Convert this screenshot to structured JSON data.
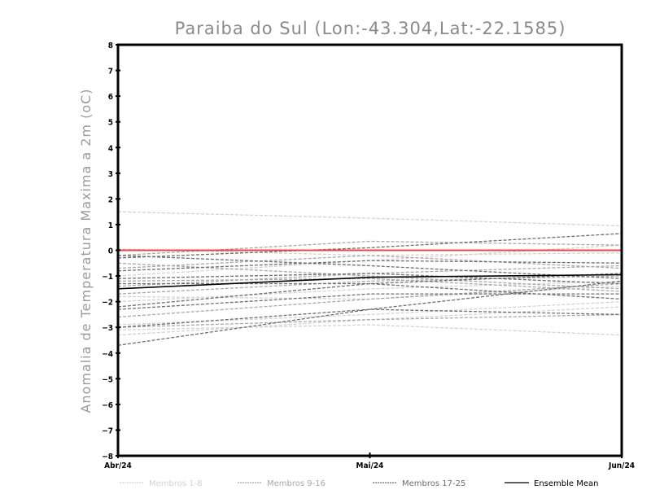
{
  "chart_data": {
    "type": "line",
    "title": "Paraiba do Sul (Lon:-43.304,Lat:-22.1585)",
    "xlabel": "",
    "ylabel": "Anomalia de Temperatura Maxima a 2m (oC)",
    "categories": [
      "Abr/24",
      "Mai/24",
      "Jun/24"
    ],
    "ylim": [
      -8,
      8
    ],
    "yticks": [
      -8,
      -7,
      -6,
      -5,
      -4,
      -3,
      -2,
      -1,
      0,
      1,
      2,
      3,
      4,
      5,
      6,
      7,
      8
    ],
    "grid": false,
    "legend_position": "bottom",
    "reference_line": {
      "value": 0,
      "color": "#ee4444"
    },
    "groups": [
      {
        "name": "Membros 1-8",
        "color": "#d2d2d2",
        "dashed": true,
        "series": [
          [
            1.5,
            1.25,
            0.95
          ],
          [
            0.05,
            -0.2,
            -0.1
          ],
          [
            -2.0,
            -1.5,
            -1.2
          ],
          [
            -3.1,
            -2.9,
            -3.3
          ],
          [
            -3.3,
            -2.7,
            -2.2
          ],
          [
            -1.0,
            -0.4,
            0.2
          ],
          [
            -1.8,
            -1.9,
            -1.4
          ],
          [
            -2.9,
            -2.5,
            -2.0
          ]
        ]
      },
      {
        "name": "Membros 9-16",
        "color": "#a8a8a8",
        "dashed": true,
        "series": [
          [
            -0.2,
            0.35,
            0.2
          ],
          [
            -0.7,
            -0.2,
            -0.7
          ],
          [
            -1.2,
            -1.1,
            -1.6
          ],
          [
            -1.4,
            -0.9,
            -0.6
          ],
          [
            -2.6,
            -1.9,
            -1.3
          ],
          [
            -0.5,
            -1.0,
            -1.5
          ],
          [
            -1.7,
            -1.2,
            -1.0
          ],
          [
            -3.0,
            -2.7,
            -2.5
          ]
        ]
      },
      {
        "name": "Membros 17-25",
        "color": "#6e6e6e",
        "dashed": true,
        "series": [
          [
            -0.3,
            0.1,
            0.65
          ],
          [
            -0.8,
            -0.4,
            -0.5
          ],
          [
            -1.1,
            -0.9,
            -1.3
          ],
          [
            -1.3,
            -1.3,
            -1.9
          ],
          [
            -2.2,
            -1.3,
            -0.9
          ],
          [
            -2.3,
            -1.7,
            -1.7
          ],
          [
            -3.0,
            -2.3,
            -2.5
          ],
          [
            -3.7,
            -2.3,
            -1.2
          ],
          [
            -0.2,
            -0.6,
            -1.1
          ]
        ]
      },
      {
        "name": "Ensemble Mean",
        "color": "#000000",
        "dashed": false,
        "series": [
          [
            -1.5,
            -1.05,
            -0.95
          ]
        ]
      }
    ]
  }
}
